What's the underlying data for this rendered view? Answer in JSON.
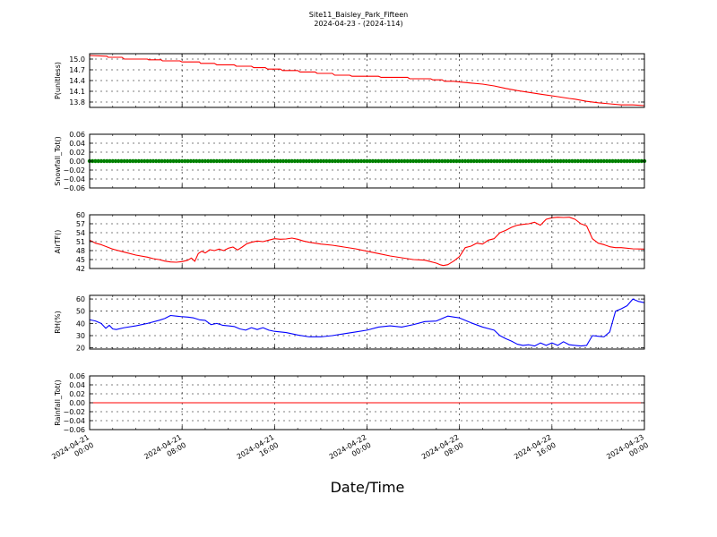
{
  "figure": {
    "title": "Site11_Baisley_Park_Fifteen",
    "subtitle": "2024-04-23 - (2024-114)",
    "xlabel": "Date/Time"
  },
  "colors": {
    "pressure": "#ff0000",
    "snowfall": "#008000",
    "airtemp": "#ff0000",
    "rh": "#0000ff",
    "rainfall": "#ff0000"
  },
  "chart_data": [
    {
      "type": "line",
      "ylabel": "P(unitless)",
      "x_range": [
        0,
        48
      ],
      "ylim": [
        13.65,
        15.15
      ],
      "yticks": [
        "15.0",
        "14.7",
        "14.4",
        "14.1",
        "13.8"
      ],
      "ytick_values": [
        15.0,
        14.7,
        14.4,
        14.1,
        13.8
      ],
      "grid": true,
      "series": [
        {
          "x": [
            0,
            1.5,
            1.6,
            2.8,
            3.0,
            5.0,
            5.1,
            6.2,
            6.3,
            7.8,
            8.0,
            9.5,
            9.6,
            10.8,
            11.0,
            12.5,
            12.7,
            14.0,
            14.2,
            15.2,
            15.4,
            16.5,
            16.7,
            18.0,
            18.2,
            19.5,
            19.7,
            21.0,
            21.2,
            22.5,
            22.7,
            25.0,
            25.2,
            27.5,
            27.7,
            29.5,
            29.7,
            30.5,
            30.7,
            31.5,
            32.0,
            33.0,
            34.0,
            35.0,
            36.0,
            37.0,
            38.0,
            39.0,
            40.5,
            41.5,
            42.0,
            43.0,
            44.0,
            45.0,
            46.0,
            47.0,
            48.0
          ],
          "y": [
            15.1,
            15.08,
            15.05,
            15.05,
            15.0,
            15.0,
            14.98,
            14.98,
            14.95,
            14.95,
            14.92,
            14.92,
            14.88,
            14.88,
            14.84,
            14.84,
            14.8,
            14.8,
            14.76,
            14.76,
            14.72,
            14.72,
            14.68,
            14.68,
            14.64,
            14.64,
            14.6,
            14.6,
            14.55,
            14.55,
            14.52,
            14.52,
            14.49,
            14.49,
            14.45,
            14.45,
            14.42,
            14.42,
            14.38,
            14.38,
            14.36,
            14.33,
            14.3,
            14.25,
            14.18,
            14.12,
            14.07,
            14.02,
            13.95,
            13.9,
            13.88,
            13.82,
            13.78,
            13.75,
            13.72,
            13.72,
            13.7
          ]
        }
      ]
    },
    {
      "type": "scatter",
      "ylabel": "Snowfall_Tot()",
      "x_range": [
        0,
        48
      ],
      "ylim": [
        -0.06,
        0.06
      ],
      "yticks": [
        "0.06",
        "0.04",
        "0.02",
        "0.00",
        "−0.02",
        "−0.04",
        "−0.06"
      ],
      "ytick_values": [
        0.06,
        0.04,
        0.02,
        0.0,
        -0.02,
        -0.04,
        -0.06
      ],
      "grid": true,
      "series": [
        {
          "x_start": 0,
          "x_end": 48,
          "count": 193,
          "y": 0.0
        }
      ]
    },
    {
      "type": "line",
      "ylabel": "AirTF()",
      "x_range": [
        0,
        48
      ],
      "ylim": [
        42,
        60
      ],
      "yticks": [
        "60",
        "57",
        "54",
        "51",
        "48",
        "45",
        "42"
      ],
      "ytick_values": [
        60,
        57,
        54,
        51,
        48,
        45,
        42
      ],
      "grid": true,
      "series": [
        {
          "x": [
            0,
            0.5,
            1.0,
            2.0,
            3.0,
            4.0,
            5.0,
            5.5,
            6.0,
            6.5,
            7.0,
            7.5,
            8.0,
            8.5,
            8.8,
            9.1,
            9.4,
            9.7,
            10.0,
            10.4,
            10.8,
            11.2,
            11.6,
            12.0,
            12.4,
            12.8,
            13.2,
            13.6,
            14.0,
            14.5,
            15.0,
            15.5,
            16.0,
            16.5,
            17.0,
            17.5,
            18.0,
            18.5,
            19.0,
            20.0,
            21.0,
            22.0,
            23.0,
            24.0,
            25.0,
            26.0,
            27.0,
            28.0,
            29.0,
            30.0,
            30.3,
            30.6,
            31.0,
            31.5,
            32.0,
            32.5,
            33.0,
            33.5,
            34.0,
            34.5,
            35.0,
            35.5,
            36.0,
            36.5,
            37.0,
            37.5,
            38.0,
            38.5,
            39.0,
            39.5,
            40.0,
            40.5,
            41.0,
            41.5,
            42.0,
            42.5,
            43.0,
            43.5,
            44.0,
            44.5,
            45.0,
            45.5,
            46.0,
            47.0,
            48.0
          ],
          "y": [
            51.5,
            50.5,
            50.0,
            48.5,
            47.5,
            46.5,
            45.8,
            45.3,
            45.0,
            44.5,
            44.2,
            44.1,
            44.3,
            44.8,
            45.5,
            44.4,
            47.0,
            47.8,
            47.2,
            48.3,
            48.0,
            48.5,
            48.0,
            48.8,
            49.2,
            48.2,
            49.2,
            50.3,
            50.8,
            51.2,
            51.0,
            51.5,
            52.0,
            51.8,
            51.9,
            52.2,
            51.8,
            51.2,
            50.8,
            50.2,
            49.8,
            49.2,
            48.6,
            47.8,
            47.0,
            46.2,
            45.6,
            45.0,
            44.8,
            43.8,
            43.3,
            43.0,
            43.3,
            44.5,
            46.0,
            49.0,
            49.5,
            50.5,
            50.2,
            51.5,
            52.0,
            54.0,
            54.8,
            55.8,
            56.5,
            56.8,
            57.0,
            57.5,
            56.5,
            58.5,
            59.0,
            59.2,
            59.1,
            59.2,
            58.5,
            57.0,
            56.3,
            52.0,
            50.5,
            50.0,
            49.3,
            49.0,
            49.0,
            48.6,
            48.5
          ]
        }
      ]
    },
    {
      "type": "line",
      "ylabel": "RH(%)",
      "x_range": [
        0,
        48
      ],
      "ylim": [
        19,
        63
      ],
      "yticks": [
        "60",
        "50",
        "40",
        "30",
        "20"
      ],
      "ytick_values": [
        60,
        50,
        40,
        30,
        20
      ],
      "grid": true,
      "series": [
        {
          "x": [
            0,
            0.5,
            1.0,
            1.4,
            1.7,
            2.0,
            2.3,
            3.0,
            4.0,
            5.0,
            6.0,
            6.5,
            7.0,
            7.5,
            8.0,
            8.5,
            9.0,
            9.5,
            10.0,
            10.5,
            11.0,
            11.5,
            12.0,
            12.5,
            13.0,
            13.5,
            14.0,
            14.5,
            15.0,
            15.5,
            16.0,
            17.0,
            18.0,
            19.0,
            20.0,
            21.0,
            22.0,
            23.0,
            24.0,
            25.0,
            26.0,
            27.0,
            28.0,
            29.0,
            30.0,
            31.0,
            32.0,
            33.0,
            34.0,
            35.0,
            35.5,
            36.0,
            36.5,
            37.0,
            37.5,
            38.0,
            38.5,
            39.0,
            39.5,
            40.0,
            40.5,
            41.0,
            41.5,
            42.0,
            42.5,
            43.0,
            43.5,
            44.0,
            44.5,
            45.0,
            45.5,
            46.0,
            46.5,
            47.0,
            47.5,
            48.0
          ],
          "y": [
            43.0,
            42.0,
            40.0,
            36.0,
            38.5,
            35.5,
            35.0,
            36.5,
            38.0,
            40.0,
            42.5,
            44.0,
            46.5,
            46.0,
            45.5,
            45.2,
            44.5,
            43.0,
            42.5,
            39.0,
            40.0,
            38.5,
            38.0,
            37.5,
            35.5,
            34.5,
            36.5,
            35.0,
            36.5,
            34.5,
            33.5,
            32.5,
            30.5,
            29.0,
            29.0,
            30.0,
            31.5,
            33.0,
            34.5,
            37.0,
            38.0,
            37.0,
            39.0,
            41.5,
            42.0,
            46.0,
            44.5,
            40.5,
            37.0,
            34.5,
            30.0,
            27.5,
            25.5,
            23.0,
            22.0,
            22.5,
            21.5,
            24.0,
            22.0,
            24.0,
            22.0,
            25.0,
            22.5,
            22.0,
            21.5,
            22.0,
            30.0,
            29.5,
            29.0,
            33.0,
            50.0,
            52.0,
            54.5,
            60.0,
            58.0,
            57.0
          ]
        }
      ]
    },
    {
      "type": "line",
      "ylabel": "Rainfall_Tot()",
      "x_range": [
        0,
        48
      ],
      "ylim": [
        -0.06,
        0.06
      ],
      "yticks": [
        "0.06",
        "0.04",
        "0.02",
        "0.00",
        "−0.02",
        "−0.04",
        "−0.06"
      ],
      "ytick_values": [
        0.06,
        0.04,
        0.02,
        0.0,
        -0.02,
        -0.04,
        -0.06
      ],
      "grid": true,
      "series": [
        {
          "x": [
            0,
            48
          ],
          "y": [
            0.0,
            0.0
          ]
        }
      ]
    }
  ],
  "x_axis": {
    "ticks": [
      {
        "x": 0,
        "line1": "2024-04-21",
        "line2": "00:00"
      },
      {
        "x": 8,
        "line1": "2024-04-21",
        "line2": "08:00"
      },
      {
        "x": 16,
        "line1": "2024-04-21",
        "line2": "16:00"
      },
      {
        "x": 24,
        "line1": "2024-04-22",
        "line2": "00:00"
      },
      {
        "x": 32,
        "line1": "2024-04-22",
        "line2": "08:00"
      },
      {
        "x": 40,
        "line1": "2024-04-22",
        "line2": "16:00"
      },
      {
        "x": 48,
        "line1": "2024-04-23",
        "line2": "00:00"
      }
    ]
  }
}
